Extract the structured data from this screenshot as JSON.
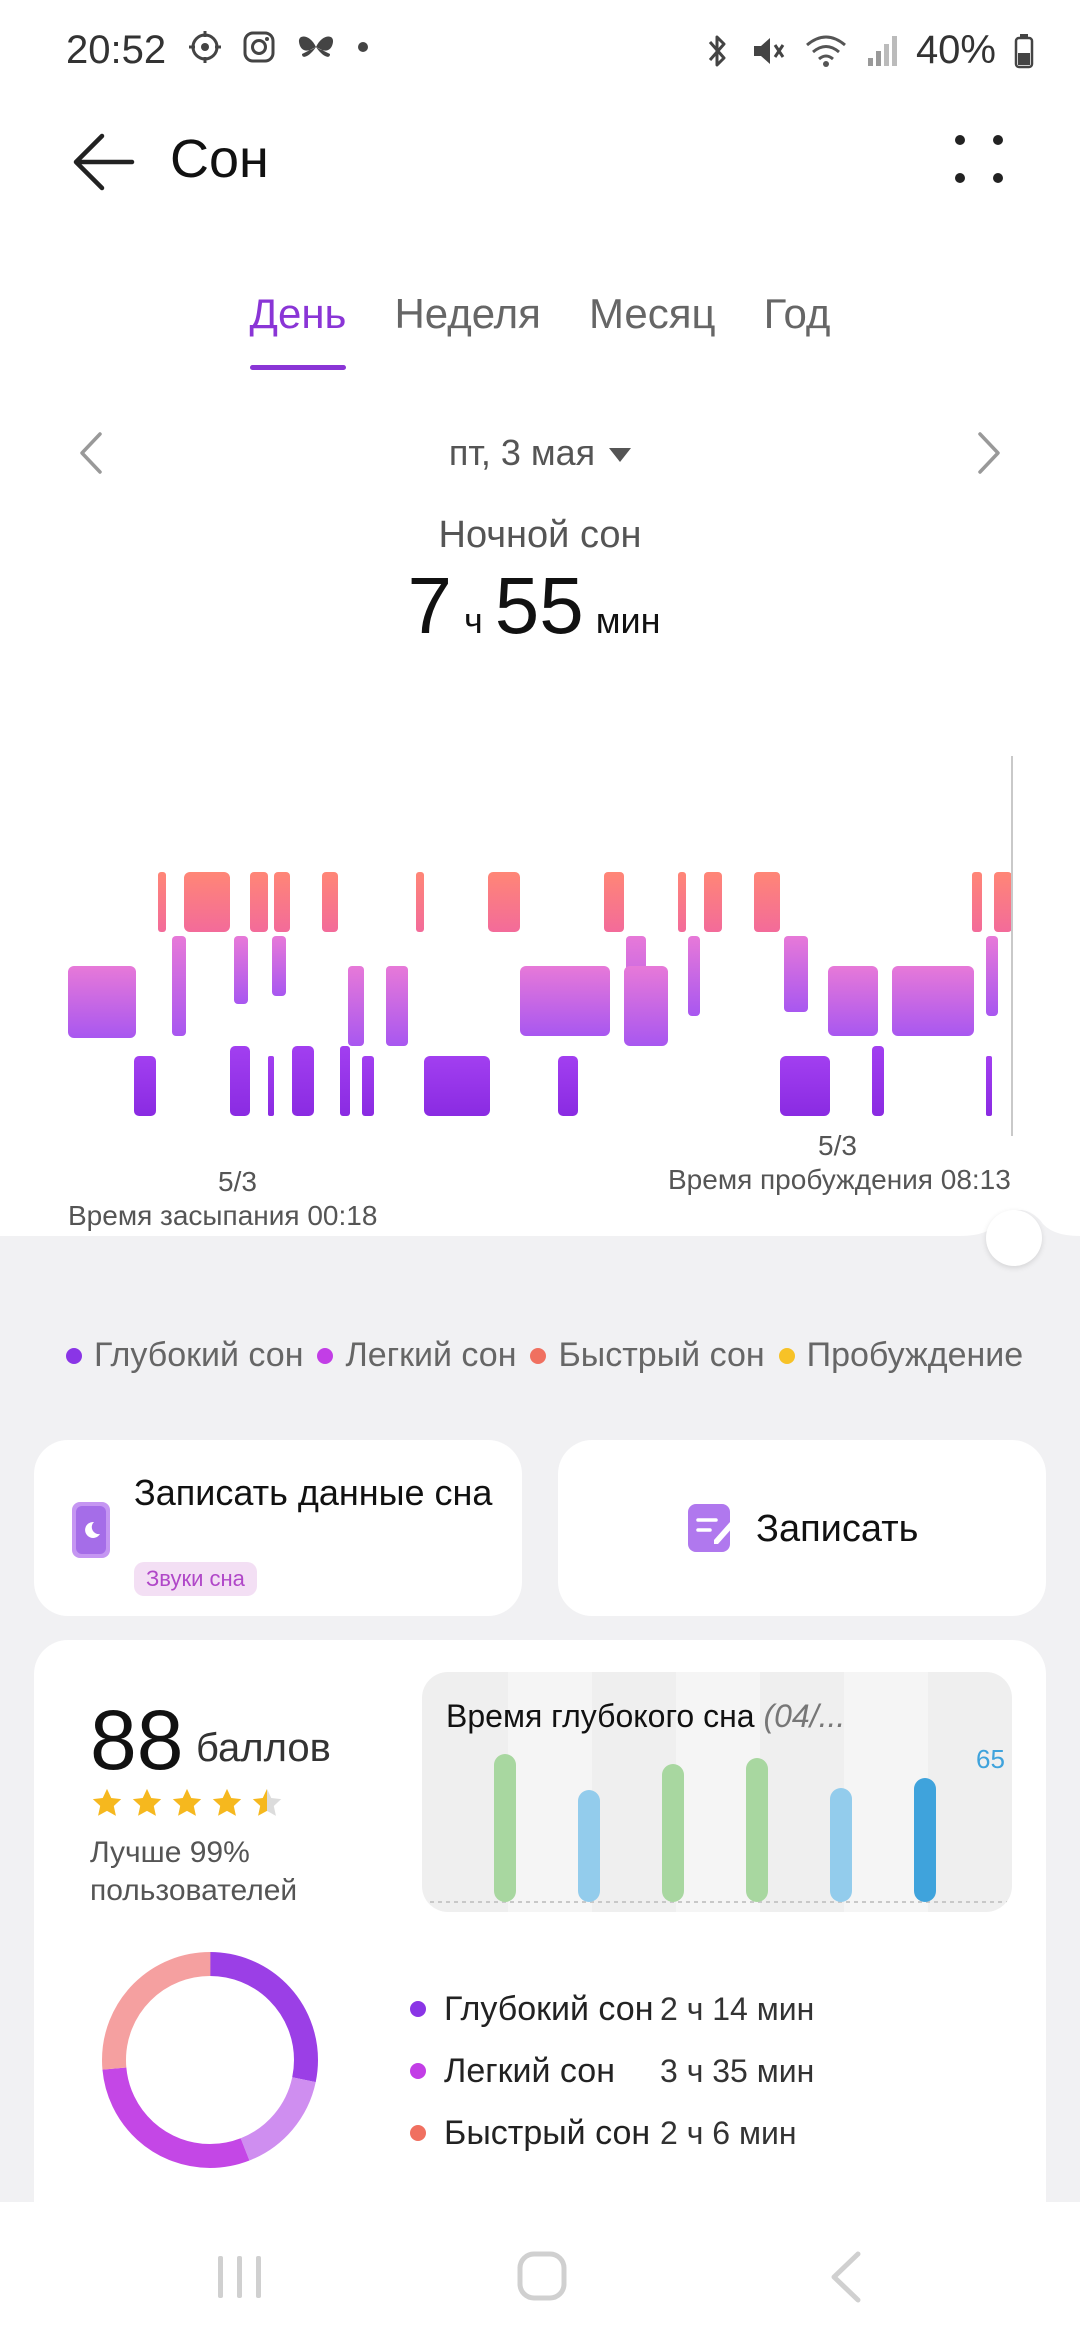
{
  "status_bar": {
    "time": "20:52",
    "left_icons": [
      "location-target-icon",
      "instagram-icon",
      "butterfly-icon",
      "dot-icon"
    ],
    "right_icons": [
      "bluetooth-icon",
      "mute-icon",
      "wifi-icon",
      "signal-icon",
      "battery-icon"
    ],
    "battery": "40%"
  },
  "header": {
    "title": "Сон",
    "back_icon": "back-arrow-icon",
    "more_icon": "more-dots-icon"
  },
  "tabs": [
    {
      "label": "День",
      "active": true
    },
    {
      "label": "Неделя",
      "active": false
    },
    {
      "label": "Месяц",
      "active": false
    },
    {
      "label": "Год",
      "active": false
    }
  ],
  "date_nav": {
    "date": "пт, 3 мая",
    "prev_icon": "chevron-left-icon",
    "next_icon": "chevron-right-icon"
  },
  "summary": {
    "label": "Ночной сон",
    "hours": "7",
    "hours_unit": "ч",
    "minutes": "55",
    "minutes_unit": "мин"
  },
  "hypnogram": {
    "start_date": "5/3",
    "start_label": "Время засыпания 00:18",
    "end_date": "5/3",
    "end_label": "Время пробуждения 08:13"
  },
  "legend": [
    {
      "label": "Глубокий сон",
      "color": "#8a35e6"
    },
    {
      "label": "Легкий сон",
      "color": "#c23ee6"
    },
    {
      "label": "Быстрый сон",
      "color": "#f07060"
    },
    {
      "label": "Пробуждение",
      "color": "#f7c227"
    }
  ],
  "record_data_card": {
    "title": "Записать данные сна",
    "badge": "Звуки сна",
    "icon": "moon-phone-icon"
  },
  "record_card": {
    "label": "Записать",
    "icon": "note-edit-icon"
  },
  "score_card": {
    "score": "88",
    "unit": "баллов",
    "rating": 4.5,
    "better_than": "Лучше 99% пользователей",
    "deep_sleep_title": "Время глубокого сна",
    "deep_sleep_range": "(04/...",
    "deep_sleep_last_value": "65",
    "breakdown": [
      {
        "name": "Глубокий сон",
        "value": "2 ч 14 мин",
        "color": "#8a35e6"
      },
      {
        "name": "Легкий сон",
        "value": "3 ч 35 мин",
        "color": "#c23ee6"
      },
      {
        "name": "Быстрый сон",
        "value": "2 ч 6 мин",
        "color": "#f07060"
      }
    ]
  },
  "nav_bar": {
    "icons": [
      "recents-icon",
      "home-icon",
      "back-nav-icon"
    ]
  }
}
